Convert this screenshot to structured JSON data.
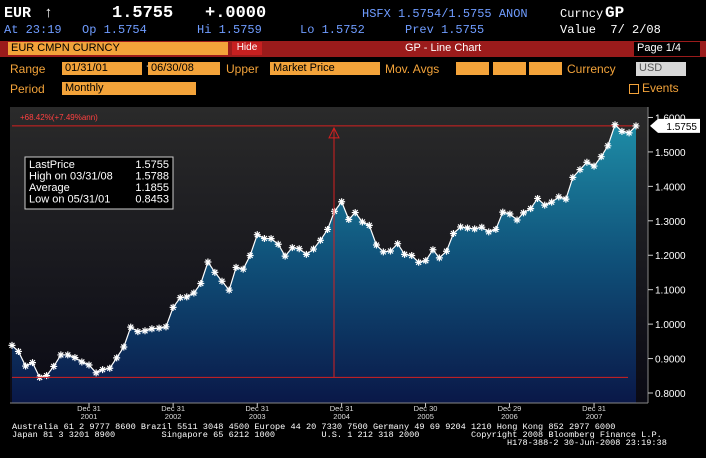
{
  "header": {
    "ticker": "EUR",
    "arrow": "↑",
    "price": "1.5755",
    "change": "+.0000",
    "quote": "HSFX 1.5754/1.5755 ANON",
    "market": "Curncy",
    "function": "GP",
    "time": "At 23:19",
    "open": "Op 1.5754",
    "high": "Hi 1.5759",
    "low": "Lo 1.5752",
    "prev": "Prev 1.5755",
    "value_date": "Value  7/ 2/08"
  },
  "toolbar": {
    "security": "EUR CMPN CURNCY",
    "hide": "Hide",
    "screen": "GP - Line Chart",
    "page": "Page 1/4"
  },
  "settings": {
    "range_label": "Range",
    "start": "01/31/01",
    "sep": "-",
    "end": "06/30/08",
    "upper_label": "Upper",
    "upper": "Market Price",
    "mov_avgs_label": "Mov. Avgs",
    "currency_label": "Currency",
    "currency": "USD",
    "period_label": "Period",
    "period": "Monthly",
    "events": "Events"
  },
  "chart_data": {
    "type": "line",
    "x": [
      "2001-01-31",
      "2001-02-28",
      "2001-03-31",
      "2001-04-30",
      "2001-05-31",
      "2001-06-30",
      "2001-07-31",
      "2001-08-31",
      "2001-09-30",
      "2001-10-31",
      "2001-11-30",
      "2001-12-31",
      "2002-01-31",
      "2002-02-28",
      "2002-03-31",
      "2002-04-30",
      "2002-05-31",
      "2002-06-30",
      "2002-07-31",
      "2002-08-31",
      "2002-09-30",
      "2002-10-31",
      "2002-11-30",
      "2002-12-31",
      "2003-01-31",
      "2003-02-28",
      "2003-03-31",
      "2003-04-30",
      "2003-05-31",
      "2003-06-30",
      "2003-07-31",
      "2003-08-31",
      "2003-09-30",
      "2003-10-31",
      "2003-11-30",
      "2003-12-31",
      "2004-01-31",
      "2004-02-29",
      "2004-03-31",
      "2004-04-30",
      "2004-05-31",
      "2004-06-30",
      "2004-07-31",
      "2004-08-31",
      "2004-09-30",
      "2004-10-31",
      "2004-11-30",
      "2004-12-31",
      "2005-01-31",
      "2005-02-28",
      "2005-03-31",
      "2005-04-30",
      "2005-05-31",
      "2005-06-30",
      "2005-07-31",
      "2005-08-31",
      "2005-09-30",
      "2005-10-31",
      "2005-11-30",
      "2005-12-31",
      "2006-01-31",
      "2006-02-28",
      "2006-03-31",
      "2006-04-30",
      "2006-05-31",
      "2006-06-30",
      "2006-07-31",
      "2006-08-31",
      "2006-09-30",
      "2006-10-31",
      "2006-11-30",
      "2006-12-31",
      "2007-01-31",
      "2007-02-28",
      "2007-03-31",
      "2007-04-30",
      "2007-05-31",
      "2007-06-30",
      "2007-07-31",
      "2007-08-31",
      "2007-09-30",
      "2007-10-31",
      "2007-11-30",
      "2007-12-31",
      "2008-01-31",
      "2008-02-29",
      "2008-03-31",
      "2008-04-30",
      "2008-05-31",
      "2008-06-30"
    ],
    "series": [
      {
        "name": "LastPrice",
        "color": "#ffffff",
        "values": [
          0.9383,
          0.9207,
          0.8783,
          0.8882,
          0.8453,
          0.8505,
          0.8772,
          0.9106,
          0.9106,
          0.9028,
          0.8902,
          0.8813,
          0.8586,
          0.8679,
          0.8718,
          0.902,
          0.9337,
          0.9913,
          0.9782,
          0.9807,
          0.9865,
          0.9885,
          0.9922,
          1.0487,
          1.0768,
          1.079,
          1.0903,
          1.118,
          1.1803,
          1.1504,
          1.1245,
          1.0987,
          1.1646,
          1.1597,
          1.1993,
          1.2597,
          1.2486,
          1.2483,
          1.2319,
          1.1975,
          1.222,
          1.219,
          1.2026,
          1.218,
          1.2434,
          1.2749,
          1.3275,
          1.3554,
          1.3037,
          1.3239,
          1.2965,
          1.2867,
          1.2297,
          1.2098,
          1.2123,
          1.2336,
          1.2026,
          1.1992,
          1.1795,
          1.1842,
          1.216,
          1.1924,
          1.2117,
          1.2631,
          1.2822,
          1.279,
          1.2764,
          1.2814,
          1.268,
          1.275,
          1.3251,
          1.3197,
          1.3024,
          1.3231,
          1.3354,
          1.3649,
          1.3455,
          1.3541,
          1.3695,
          1.363,
          1.4261,
          1.4486,
          1.47,
          1.4589,
          1.4862,
          1.5177,
          1.5788,
          1.5597,
          1.5553,
          1.5755
        ]
      }
    ],
    "xlim": [
      "2001-01-31",
      "2008-06-30"
    ],
    "xticks": [
      {
        "value": "2001-12-31",
        "label": [
          "Dec 31",
          "2001"
        ]
      },
      {
        "value": "2002-12-31",
        "label": [
          "Dec 31",
          "2002"
        ]
      },
      {
        "value": "2003-12-31",
        "label": [
          "Dec 31",
          "2003"
        ]
      },
      {
        "value": "2004-12-31",
        "label": [
          "Dec 31",
          "2004"
        ]
      },
      {
        "value": "2005-12-30",
        "label": [
          "Dec 30",
          "2005"
        ]
      },
      {
        "value": "2006-12-29",
        "label": [
          "Dec 29",
          "2006"
        ]
      },
      {
        "value": "2007-12-31",
        "label": [
          "Dec 31",
          "2007"
        ]
      }
    ],
    "ylim": [
      0.771,
      1.613
    ],
    "yticks": [
      {
        "value": 0.8,
        "label": "0.8000"
      },
      {
        "value": 0.9,
        "label": "0.9000"
      },
      {
        "value": 1.0,
        "label": "1.0000"
      },
      {
        "value": 1.1,
        "label": "1.1000"
      },
      {
        "value": 1.2,
        "label": "1.2000"
      },
      {
        "value": 1.3,
        "label": "1.3000"
      },
      {
        "value": 1.4,
        "label": "1.4000"
      },
      {
        "value": 1.5,
        "label": "1.5000"
      },
      {
        "value": 1.6,
        "label": "1.6000"
      }
    ],
    "annotation": "+68.42%(+7.49%ann)",
    "stats": [
      {
        "label": "LastPrice",
        "value": 1.5755
      },
      {
        "label": "High on 03/31/08",
        "value": 1.5788
      },
      {
        "label": "Average",
        "value": 1.1855
      },
      {
        "label": "Low on 05/31/01",
        "value": 0.8453
      }
    ]
  },
  "footer": {
    "lines": [
      "Australia 61 2 9777 8600 Brazil 5511 3048 4500 Europe 44 20 7330 7500 Germany 49 69 9204 1210 Hong Kong 852 2977 6000",
      "Japan 81 3 3201 8900         Singapore 65 6212 1000         U.S. 1 212 318 2000          Copyright 2008 Bloomberg Finance L.P."
    ],
    "stamp": "H178-388-2 30-Jun-2008 23:19:38"
  }
}
